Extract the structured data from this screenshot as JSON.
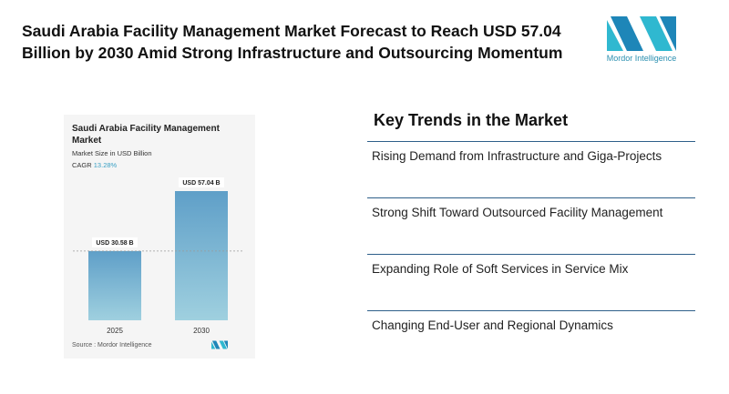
{
  "headline": "Saudi Arabia Facility Management Market Forecast to Reach USD 57.04 Billion by 2030 Amid Strong Infrastructure and Outsourcing Momentum",
  "logo": {
    "text": "Mordor Intelligence",
    "color": "#2a8fb0",
    "icon": "mordor-logo-icon"
  },
  "chart": {
    "subtitle": "Market Size in USD Billion",
    "cagr_label": "CAGR",
    "cagr_value": "13.28%",
    "source": "Source :  Mordor Intelligence"
  },
  "chart_data": {
    "type": "bar",
    "title": "Saudi Arabia Facility Management Market",
    "categories": [
      "2025",
      "2030"
    ],
    "values": [
      30.58,
      57.04
    ],
    "data_labels": [
      "USD 30.58 B",
      "USD 57.04 B"
    ],
    "ylim": [
      0,
      57.04
    ],
    "grid": false,
    "reference_line": {
      "at": 30.58,
      "style": "dashed"
    },
    "bar_color_top": "#5f9fc8",
    "bar_color_bottom": "#9fd0df"
  },
  "trends": {
    "title": "Key Trends in the Market",
    "items": [
      "Rising Demand from Infrastructure and Giga-Projects",
      "Strong Shift Toward Outsourced Facility Management",
      "Expanding Role of Soft Services in Service Mix",
      "Changing End-User and Regional Dynamics"
    ],
    "line_color": "#2e5f8a"
  }
}
